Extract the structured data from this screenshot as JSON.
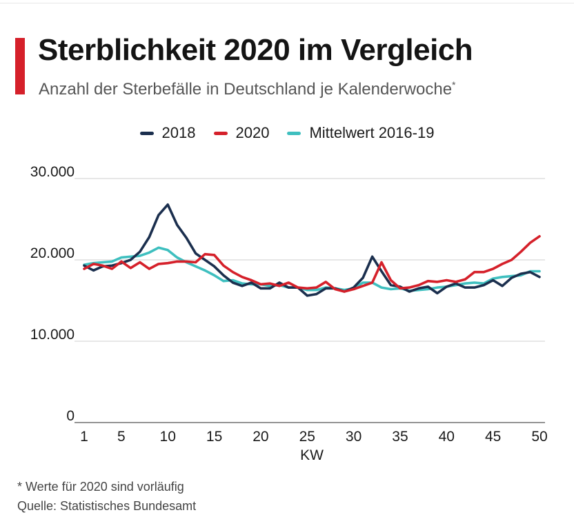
{
  "header": {
    "title": "Sterblichkeit 2020 im Vergleich",
    "subtitle": "Anzahl der Sterbefälle in Deutschland je Kalenderwoche",
    "subtitle_marker": "*"
  },
  "footer": {
    "footnote": "* Werte für 2020 sind vorläufig",
    "source": "Quelle: Statistisches Bundesamt"
  },
  "colors": {
    "accent": "#d5202a",
    "series_2018": "#1b2f4e",
    "series_2020": "#d5202a",
    "series_mean": "#3ebfbf",
    "grid": "#cfcfcf"
  },
  "chart_data": {
    "type": "line",
    "title": "Sterblichkeit 2020 im Vergleich",
    "subtitle": "Anzahl der Sterbefälle in Deutschland je Kalenderwoche",
    "xlabel": "KW",
    "ylabel": "",
    "xlim": [
      1,
      50
    ],
    "ylim": [
      0,
      30000
    ],
    "x_ticks": [
      1,
      5,
      10,
      15,
      20,
      25,
      30,
      35,
      40,
      45,
      50
    ],
    "y_ticks": [
      0,
      10000,
      20000,
      30000
    ],
    "y_tick_labels": [
      "0",
      "10.000",
      "20.000",
      "30.000"
    ],
    "grid": true,
    "legend_position": "top-center",
    "x": [
      1,
      2,
      3,
      4,
      5,
      6,
      7,
      8,
      9,
      10,
      11,
      12,
      13,
      14,
      15,
      16,
      17,
      18,
      19,
      20,
      21,
      22,
      23,
      24,
      25,
      26,
      27,
      28,
      29,
      30,
      31,
      32,
      33,
      34,
      35,
      36,
      37,
      38,
      39,
      40,
      41,
      42,
      43,
      44,
      45,
      46,
      47,
      48,
      49,
      50
    ],
    "series": [
      {
        "name": "2018",
        "color": "#1b2f4e",
        "values": [
          19300,
          18700,
          19200,
          19300,
          19600,
          20000,
          21000,
          22800,
          25500,
          26800,
          24300,
          22700,
          20800,
          20000,
          19200,
          18100,
          17200,
          16800,
          17200,
          16500,
          16500,
          17200,
          16600,
          16600,
          15600,
          15800,
          16500,
          16500,
          16100,
          16600,
          17800,
          20400,
          18600,
          16900,
          16700,
          16100,
          16500,
          16700,
          15900,
          16700,
          17100,
          16600,
          16600,
          16900,
          17500,
          16800,
          17800,
          18300,
          18500,
          17900
        ]
      },
      {
        "name": "2020",
        "color": "#d5202a",
        "values": [
          18900,
          19500,
          19300,
          18900,
          19800,
          19000,
          19700,
          18900,
          19500,
          19600,
          19800,
          19800,
          19700,
          20700,
          20600,
          19300,
          18500,
          17900,
          17500,
          17000,
          17100,
          16800,
          17200,
          16600,
          16500,
          16600,
          17300,
          16400,
          16100,
          16400,
          16800,
          17200,
          19700,
          17500,
          16500,
          16600,
          16900,
          17400,
          17300,
          17500,
          17300,
          17600,
          18500,
          18500,
          18900,
          19500,
          20000,
          21000,
          22100,
          22900
        ]
      },
      {
        "name": "Mittelwert 2016-19",
        "color": "#3ebfbf",
        "values": [
          19400,
          19600,
          19700,
          19800,
          20300,
          20400,
          20500,
          20900,
          21500,
          21200,
          20300,
          19700,
          19200,
          18700,
          18100,
          17400,
          17500,
          17100,
          17000,
          17000,
          16800,
          16900,
          16600,
          16600,
          16300,
          16300,
          16600,
          16500,
          16300,
          16500,
          17200,
          17200,
          16600,
          16400,
          16500,
          16200,
          16300,
          16400,
          16600,
          16700,
          16900,
          17100,
          17200,
          17100,
          17700,
          17900,
          18000,
          18100,
          18600,
          18600
        ]
      }
    ]
  }
}
